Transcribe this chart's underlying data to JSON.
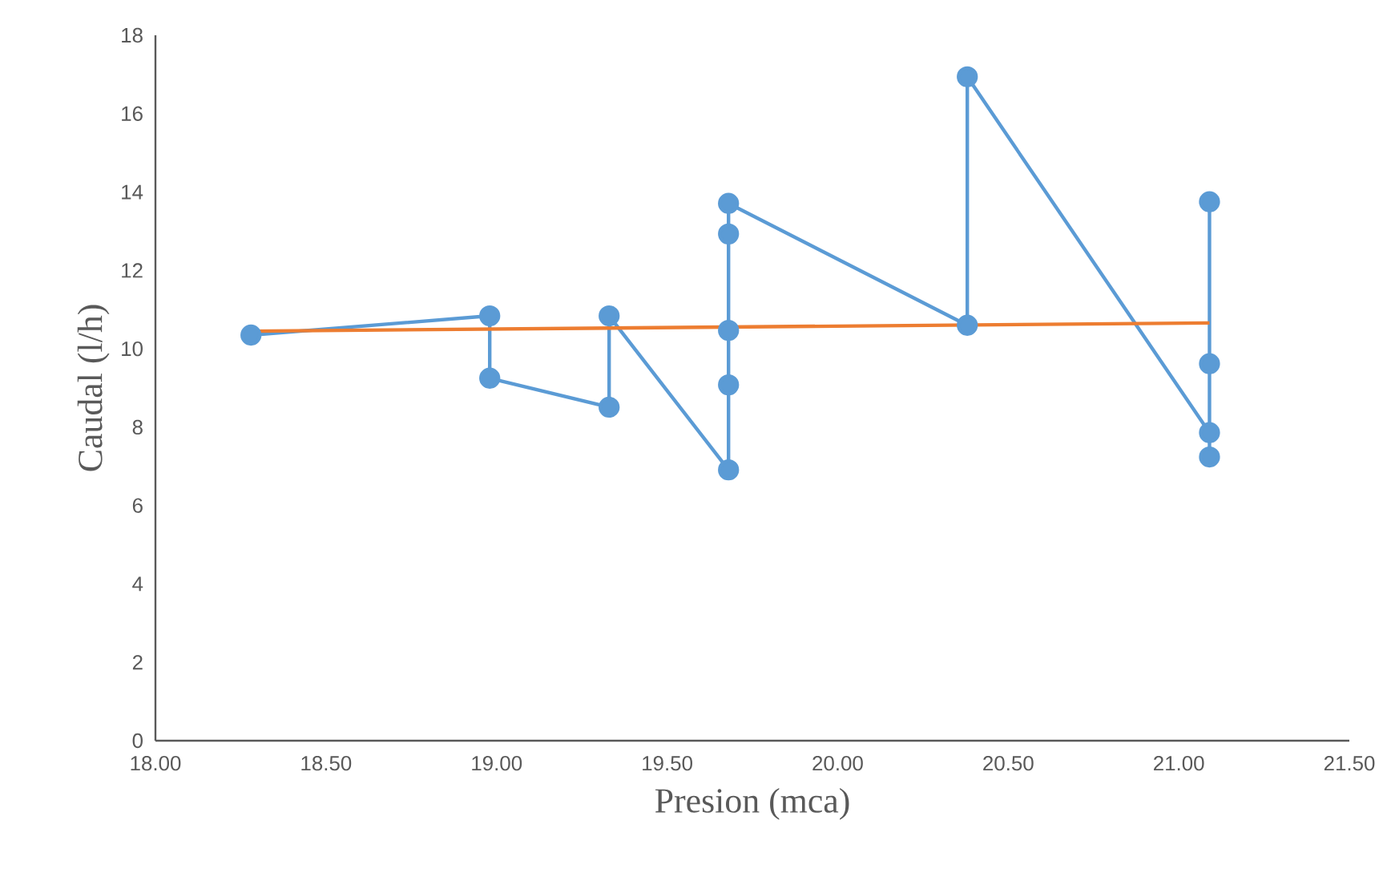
{
  "chart_data": {
    "type": "line",
    "xlabel": "Presion (mca)",
    "ylabel": "Caudal (l/h)",
    "xlim": [
      18.0,
      21.5
    ],
    "ylim": [
      0,
      18
    ],
    "xticks": [
      {
        "value": 18.0,
        "label": "18.00"
      },
      {
        "value": 18.5,
        "label": "18.50"
      },
      {
        "value": 19.0,
        "label": "19.00"
      },
      {
        "value": 19.5,
        "label": "19.50"
      },
      {
        "value": 20.0,
        "label": "20.00"
      },
      {
        "value": 20.5,
        "label": "20.50"
      },
      {
        "value": 21.0,
        "label": "21.00"
      },
      {
        "value": 21.5,
        "label": "21.50"
      }
    ],
    "yticks": [
      0,
      2,
      4,
      6,
      8,
      10,
      12,
      14,
      16,
      18
    ],
    "grid": false,
    "legend": false,
    "series": [
      {
        "marker": "circle",
        "line_style": "solid",
        "color": "#5b9bd5",
        "x": [
          18.28,
          18.98,
          18.98,
          19.33,
          19.33,
          19.68,
          19.68,
          19.68,
          19.68,
          19.68,
          20.38,
          20.38,
          21.09,
          21.09,
          21.09,
          21.09
        ],
        "values": [
          10.35,
          10.84,
          9.25,
          8.51,
          10.84,
          6.91,
          9.08,
          10.47,
          12.93,
          13.71,
          10.6,
          16.94,
          7.86,
          7.24,
          9.62,
          13.75
        ]
      },
      {
        "type": "line",
        "marker": "none",
        "line_style": "solid",
        "color": "#ed7d31",
        "x": [
          18.28,
          21.09
        ],
        "values": [
          10.45,
          10.66
        ]
      }
    ]
  }
}
